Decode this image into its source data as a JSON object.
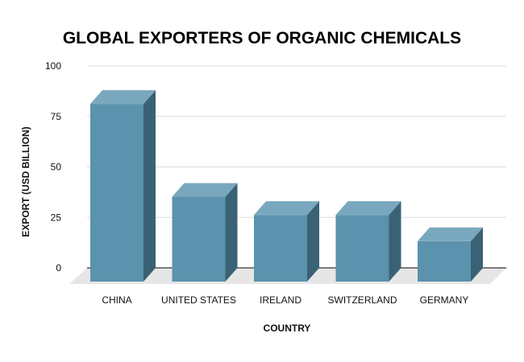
{
  "chart_data": {
    "type": "bar",
    "title": "GLOBAL EXPORTERS OF ORGANIC CHEMICALS",
    "xlabel": "COUNTRY",
    "ylabel": "EXPORT (USD BILLION)",
    "categories": [
      "CHINA",
      "UNITED STATES",
      "IRELAND",
      "SWITZERLAND",
      "GERMANY"
    ],
    "values": [
      88,
      42,
      33,
      33,
      20
    ],
    "ylim": [
      0,
      100
    ],
    "yticks": [
      0,
      25,
      50,
      75,
      100
    ],
    "ytick_labels": [
      "0",
      "25",
      "50",
      "75",
      "100"
    ],
    "grid": true,
    "legend": "none",
    "style": "3d-bar",
    "colors": {
      "bar_front": "#5b92ad",
      "bar_top": "#79a8be",
      "bar_side": "#3a6275",
      "floor": "#e6e6e6",
      "grid": "#dcdcdc",
      "axis": "#333333"
    }
  }
}
